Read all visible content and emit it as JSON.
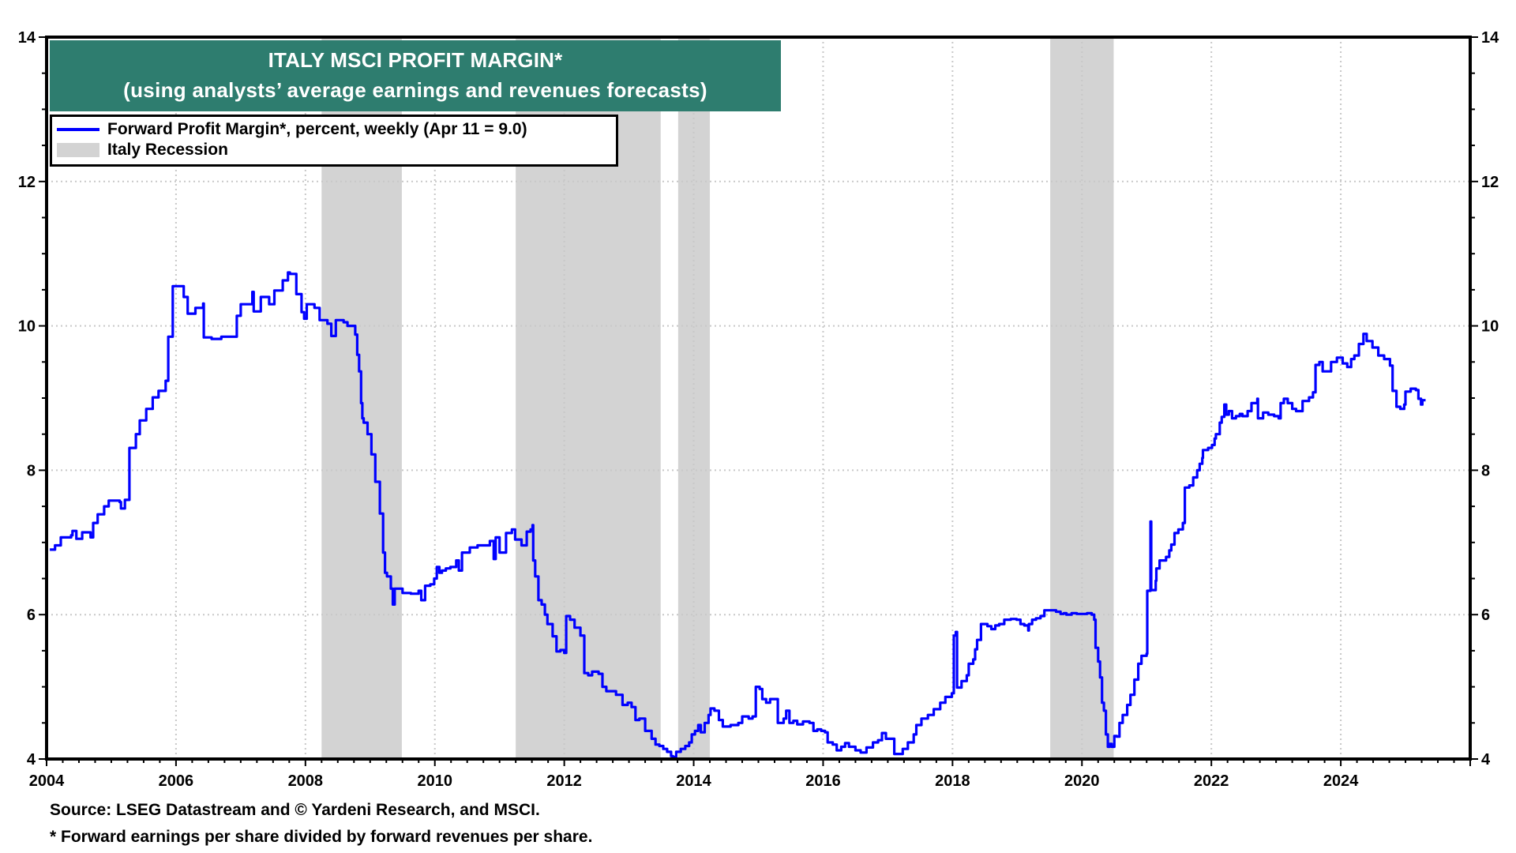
{
  "chart_data": {
    "type": "line",
    "title": "ITALY MSCI PROFIT MARGIN*",
    "subtitle": "(using analysts’ average earnings and revenues forecasts)",
    "xlabel": "",
    "ylabel": "",
    "xlim": [
      2004,
      2026
    ],
    "ylim": [
      4,
      14
    ],
    "x_ticks": [
      2004,
      2006,
      2008,
      2010,
      2012,
      2014,
      2016,
      2018,
      2020,
      2022,
      2024
    ],
    "x_tick_labels": [
      "2004",
      "2006",
      "2008",
      "2010",
      "2012",
      "2014",
      "2016",
      "2018",
      "2020",
      "2022",
      "2024"
    ],
    "y_ticks": [
      4,
      6,
      8,
      10,
      12,
      14
    ],
    "y_tick_labels": [
      "4",
      "6",
      "8",
      "10",
      "12",
      "14"
    ],
    "y_axis_both_sides": true,
    "grid": true,
    "legend_position": "top-left",
    "legend": [
      {
        "label": "Forward Profit Margin*, percent, weekly (Apr 11 = 9.0)",
        "kind": "line",
        "color": "#0000ff"
      },
      {
        "label": "Italy Recession",
        "kind": "band",
        "color": "#d3d3d3"
      }
    ],
    "recessions": [
      {
        "start": 2008.25,
        "end": 2009.49
      },
      {
        "start": 2011.25,
        "end": 2013.49
      },
      {
        "start": 2013.76,
        "end": 2014.25
      },
      {
        "start": 2019.51,
        "end": 2020.49
      }
    ],
    "series": [
      {
        "name": "Forward Profit Margin*, percent, weekly (Apr 11 = 9.0)",
        "color": "#0000ff",
        "x": [
          2004.05,
          2004.13,
          2004.22,
          2004.38,
          2004.4,
          2004.46,
          2004.55,
          2004.68,
          2004.72,
          2004.79,
          2004.89,
          2004.96,
          2005.13,
          2005.15,
          2005.21,
          2005.27,
          2005.28,
          2005.38,
          2005.44,
          2005.54,
          2005.64,
          2005.73,
          2005.84,
          2005.88,
          2005.95,
          2006.05,
          2006.12,
          2006.18,
          2006.3,
          2006.42,
          2006.43,
          2006.55,
          2006.7,
          2006.94,
          2007.0,
          2007.18,
          2007.2,
          2007.31,
          2007.44,
          2007.52,
          2007.65,
          2007.73,
          2007.76,
          2007.86,
          2007.94,
          2007.98,
          2008.02,
          2008.14,
          2008.22,
          2008.34,
          2008.4,
          2008.47,
          2008.59,
          2008.65,
          2008.72,
          2008.77,
          2008.8,
          2008.83,
          2008.86,
          2008.88,
          2008.9,
          2008.96,
          2009.02,
          2009.08,
          2009.15,
          2009.2,
          2009.23,
          2009.26,
          2009.32,
          2009.35,
          2009.38,
          2009.5,
          2009.63,
          2009.75,
          2009.79,
          2009.85,
          2009.93,
          2009.99,
          2010.03,
          2010.07,
          2010.11,
          2010.17,
          2010.24,
          2010.33,
          2010.37,
          2010.42,
          2010.54,
          2010.66,
          2010.85,
          2010.91,
          2010.94,
          2011.0,
          2011.1,
          2011.19,
          2011.24,
          2011.34,
          2011.4,
          2011.42,
          2011.48,
          2011.51,
          2011.52,
          2011.55,
          2011.6,
          2011.65,
          2011.7,
          2011.74,
          2011.82,
          2011.88,
          2011.94,
          2012.0,
          2012.03,
          2012.09,
          2012.16,
          2012.25,
          2012.28,
          2012.31,
          2012.37,
          2012.43,
          2012.53,
          2012.59,
          2012.65,
          2012.8,
          2012.9,
          2012.98,
          2013.04,
          2013.1,
          2013.16,
          2013.25,
          2013.35,
          2013.41,
          2013.47,
          2013.53,
          2013.59,
          2013.65,
          2013.68,
          2013.73,
          2013.8,
          2013.87,
          2013.93,
          2013.97,
          2014.02,
          2014.07,
          2014.11,
          2014.17,
          2014.23,
          2014.26,
          2014.32,
          2014.39,
          2014.45,
          2014.57,
          2014.69,
          2014.75,
          2014.85,
          2014.91,
          2014.96,
          2015.02,
          2015.06,
          2015.12,
          2015.18,
          2015.28,
          2015.3,
          2015.39,
          2015.43,
          2015.48,
          2015.54,
          2015.6,
          2015.69,
          2015.79,
          2015.85,
          2015.91,
          2015.97,
          2016.03,
          2016.07,
          2016.15,
          2016.21,
          2016.28,
          2016.34,
          2016.4,
          2016.46,
          2016.5,
          2016.58,
          2016.67,
          2016.77,
          2016.85,
          2016.91,
          2016.97,
          2017.07,
          2017.1,
          2017.16,
          2017.23,
          2017.31,
          2017.4,
          2017.44,
          2017.52,
          2017.62,
          2017.71,
          2017.81,
          2017.89,
          2017.99,
          2018.02,
          2018.05,
          2018.07,
          2018.14,
          2018.22,
          2018.25,
          2018.32,
          2018.35,
          2018.38,
          2018.44,
          2018.54,
          2018.6,
          2018.66,
          2018.72,
          2018.8,
          2018.9,
          2018.99,
          2019.05,
          2019.11,
          2019.17,
          2019.18,
          2019.23,
          2019.29,
          2019.36,
          2019.42,
          2019.51,
          2019.6,
          2019.67,
          2019.72,
          2019.76,
          2019.84,
          2019.92,
          2020.01,
          2020.08,
          2020.15,
          2020.19,
          2020.21,
          2020.25,
          2020.28,
          2020.31,
          2020.34,
          2020.37,
          2020.4,
          2020.43,
          2020.46,
          2020.5,
          2020.54,
          2020.58,
          2020.63,
          2020.7,
          2020.75,
          2020.81,
          2020.87,
          2020.92,
          2021.0,
          2021.01,
          2021.05,
          2021.06,
          2021.07,
          2021.12,
          2021.14,
          2021.15,
          2021.18,
          2021.2,
          2021.3,
          2021.35,
          2021.38,
          2021.43,
          2021.49,
          2021.56,
          2021.58,
          2021.59,
          2021.66,
          2021.72,
          2021.78,
          2021.82,
          2021.86,
          2021.87,
          2021.95,
          2022.01,
          2022.05,
          2022.07,
          2022.13,
          2022.16,
          2022.2,
          2022.23,
          2022.27,
          2022.32,
          2022.38,
          2022.44,
          2022.48,
          2022.56,
          2022.62,
          2022.71,
          2022.72,
          2022.77,
          2022.8,
          2022.88,
          2022.97,
          2023.04,
          2023.07,
          2023.12,
          2023.18,
          2023.25,
          2023.31,
          2023.41,
          2023.51,
          2023.57,
          2023.61,
          2023.67,
          2023.72,
          2023.79,
          2023.85,
          2023.94,
          2024.03,
          2024.1,
          2024.16,
          2024.21,
          2024.28,
          2024.35,
          2024.4,
          2024.49,
          2024.58,
          2024.67,
          2024.76,
          2024.8,
          2024.86,
          2024.92,
          2024.98,
          2025.0,
          2025.08,
          2025.16,
          2025.2,
          2025.24,
          2025.26,
          2025.31
        ],
        "y": [
          6.9,
          6.96,
          7.07,
          7.1,
          7.16,
          7.05,
          7.14,
          7.07,
          7.27,
          7.39,
          7.5,
          7.58,
          7.56,
          7.47,
          7.59,
          7.59,
          8.31,
          8.5,
          8.69,
          8.85,
          9.01,
          9.1,
          9.24,
          9.85,
          10.55,
          10.55,
          10.4,
          10.17,
          10.25,
          10.31,
          9.84,
          9.82,
          9.85,
          10.14,
          10.3,
          10.47,
          10.2,
          10.4,
          10.3,
          10.49,
          10.63,
          10.74,
          10.72,
          10.44,
          10.19,
          10.1,
          10.3,
          10.25,
          10.08,
          10.03,
          9.86,
          10.08,
          10.05,
          10.0,
          10.0,
          9.88,
          9.6,
          9.37,
          8.93,
          8.72,
          8.66,
          8.5,
          8.22,
          7.84,
          7.4,
          6.86,
          6.58,
          6.53,
          6.36,
          6.14,
          6.36,
          6.3,
          6.29,
          6.33,
          6.2,
          6.4,
          6.42,
          6.5,
          6.66,
          6.58,
          6.61,
          6.64,
          6.66,
          6.75,
          6.61,
          6.86,
          6.93,
          6.96,
          7.02,
          6.77,
          7.07,
          6.86,
          7.13,
          7.18,
          7.04,
          6.96,
          6.96,
          7.15,
          7.18,
          7.24,
          6.75,
          6.53,
          6.2,
          6.14,
          6.0,
          5.87,
          5.7,
          5.49,
          5.51,
          5.47,
          5.98,
          5.93,
          5.82,
          5.71,
          5.71,
          5.19,
          5.16,
          5.21,
          5.18,
          5.0,
          4.94,
          4.89,
          4.75,
          4.78,
          4.72,
          4.54,
          4.56,
          4.39,
          4.28,
          4.2,
          4.18,
          4.14,
          4.1,
          4.04,
          4.03,
          4.1,
          4.14,
          4.18,
          4.23,
          4.34,
          4.39,
          4.47,
          4.37,
          4.5,
          4.61,
          4.7,
          4.67,
          4.54,
          4.45,
          4.47,
          4.5,
          4.59,
          4.56,
          4.59,
          5.0,
          4.97,
          4.83,
          4.78,
          4.83,
          4.83,
          4.5,
          4.56,
          4.67,
          4.5,
          4.53,
          4.48,
          4.52,
          4.5,
          4.39,
          4.41,
          4.39,
          4.37,
          4.23,
          4.2,
          4.12,
          4.17,
          4.22,
          4.17,
          4.17,
          4.12,
          4.09,
          4.16,
          4.23,
          4.26,
          4.36,
          4.28,
          4.28,
          4.07,
          4.07,
          4.14,
          4.23,
          4.34,
          4.47,
          4.56,
          4.61,
          4.69,
          4.78,
          4.86,
          4.91,
          5.71,
          5.76,
          4.99,
          5.08,
          5.16,
          5.32,
          5.38,
          5.52,
          5.65,
          5.87,
          5.84,
          5.8,
          5.85,
          5.87,
          5.93,
          5.94,
          5.93,
          5.87,
          5.85,
          5.78,
          5.87,
          5.93,
          5.95,
          5.98,
          6.06,
          6.06,
          6.04,
          6.01,
          6.02,
          6.0,
          6.02,
          6.01,
          6.01,
          6.02,
          6.0,
          5.93,
          5.54,
          5.35,
          5.13,
          4.78,
          4.67,
          4.34,
          4.17,
          4.21,
          4.17,
          4.32,
          4.31,
          4.5,
          4.61,
          4.75,
          4.89,
          5.1,
          5.32,
          5.43,
          5.46,
          6.33,
          6.33,
          7.29,
          6.34,
          6.34,
          6.47,
          6.64,
          6.64,
          6.75,
          6.8,
          6.89,
          6.97,
          7.13,
          7.18,
          7.27,
          7.27,
          7.76,
          7.79,
          7.9,
          8.0,
          8.09,
          8.17,
          8.28,
          8.31,
          8.35,
          8.44,
          8.5,
          8.66,
          8.74,
          8.91,
          8.77,
          8.82,
          8.72,
          8.75,
          8.78,
          8.75,
          8.82,
          8.93,
          8.99,
          8.72,
          8.72,
          8.8,
          8.77,
          8.75,
          8.72,
          8.93,
          8.99,
          8.93,
          8.85,
          8.82,
          8.96,
          9.01,
          9.08,
          9.46,
          9.5,
          9.37,
          9.37,
          9.5,
          9.56,
          9.48,
          9.43,
          9.54,
          9.59,
          9.75,
          9.89,
          9.79,
          9.7,
          9.59,
          9.54,
          9.45,
          9.1,
          8.88,
          8.85,
          8.91,
          9.09,
          9.13,
          9.11,
          8.99,
          8.91,
          8.97,
          8.97
        ]
      }
    ]
  },
  "footnotes": {
    "source": "Source: LSEG Datastream and © Yardeni Research, and MSCI.",
    "definition": "* Forward earnings per share divided by forward revenues per share."
  }
}
